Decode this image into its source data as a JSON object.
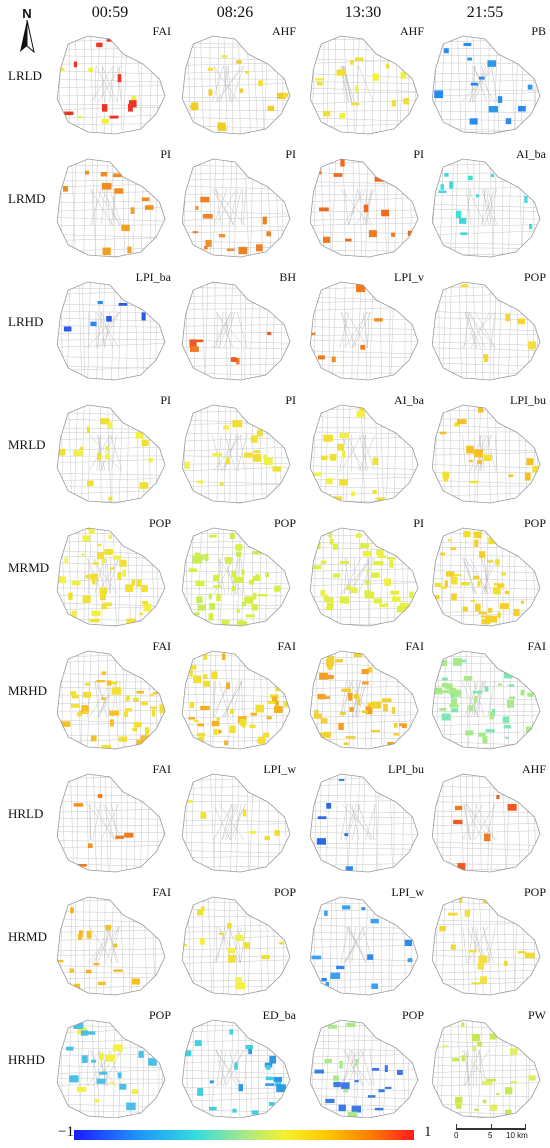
{
  "north_label": "N",
  "times": [
    "00:59",
    "08:26",
    "13:30",
    "21:55"
  ],
  "rows": [
    {
      "name": "LRLD",
      "labels": [
        "FAI",
        "AHF",
        "AHF",
        "PB"
      ],
      "colors": [
        "#ee3322",
        "#f2cc22",
        "#f2e030",
        "#2a8af0"
      ],
      "secondary": [
        "#f2f230",
        "#f2e030",
        "#f2f230",
        "#2a9ae8"
      ]
    },
    {
      "name": "LRMD",
      "labels": [
        "PI",
        "PI",
        "PI",
        "AI_ba"
      ],
      "colors": [
        "#f08c1e",
        "#f08024",
        "#f06a1e",
        "#3fd7e0"
      ],
      "secondary": [
        "#f2a020",
        "#f0902a",
        "#f07a24",
        "#40e0d8"
      ]
    },
    {
      "name": "LRHD",
      "labels": [
        "LPI_ba",
        "BH",
        "LPI_v",
        "POP"
      ],
      "colors": [
        "#2a5ae8",
        "#f05a1e",
        "#f07a1e",
        "#f2d830"
      ],
      "secondary": [
        "#2a8af0",
        "#f07a2a",
        "#f09020",
        "#f2e040"
      ]
    },
    {
      "name": "MRLD",
      "labels": [
        "PI",
        "PI",
        "AI_ba",
        "LPI_bu"
      ],
      "colors": [
        "#f2e030",
        "#f2e030",
        "#f2e030",
        "#f5c020"
      ],
      "secondary": [
        "#f2f040",
        "#f2f040",
        "#f2f040",
        "#f2e030"
      ]
    },
    {
      "name": "MRMD",
      "labels": [
        "POP",
        "POP",
        "PI",
        "POP"
      ],
      "colors": [
        "#f2e030",
        "#d8ee40",
        "#e0ee40",
        "#f5d028"
      ],
      "secondary": [
        "#f2f040",
        "#c8ee55",
        "#eaf040",
        "#f2e030"
      ]
    },
    {
      "name": "MRHD",
      "labels": [
        "FAI",
        "FAI",
        "FAI",
        "FAI"
      ],
      "colors": [
        "#f2e030",
        "#f2e030",
        "#f2d030",
        "#a8ea88"
      ],
      "secondary": [
        "#f5c020",
        "#f5b020",
        "#f5a020",
        "#7ae8b0"
      ]
    },
    {
      "name": "HRLD",
      "labels": [
        "FAI",
        "LPI_w",
        "LPI_bu",
        "AHF"
      ],
      "colors": [
        "#f07a1e",
        "#f2e030",
        "#2a6ae8",
        "#f05a1e"
      ],
      "secondary": [
        "#f09020",
        "#f2f040",
        "#2a8af0",
        "#f07a24"
      ]
    },
    {
      "name": "HRMD",
      "labels": [
        "FAI",
        "POP",
        "LPI_w",
        "POP"
      ],
      "colors": [
        "#f5c020",
        "#f2e030",
        "#3aa0f0",
        "#f2d830"
      ],
      "secondary": [
        "#f5b020",
        "#f2f040",
        "#2a8af0",
        "#f2e040"
      ]
    },
    {
      "name": "HRHD",
      "labels": [
        "POP",
        "ED_ba",
        "POP",
        "PW"
      ],
      "colors": [
        "#4ac0e8",
        "#40d0e0",
        "#3a7ae8",
        "#c8e850"
      ],
      "secondary": [
        "#f2f040",
        "#2a9ae8",
        "#a8ea88",
        "#e0ee60"
      ]
    }
  ],
  "colorbar": {
    "min_label": "−1",
    "max_label": "1"
  },
  "scalebar": {
    "ticks": [
      "0",
      "5",
      "10 km"
    ]
  }
}
